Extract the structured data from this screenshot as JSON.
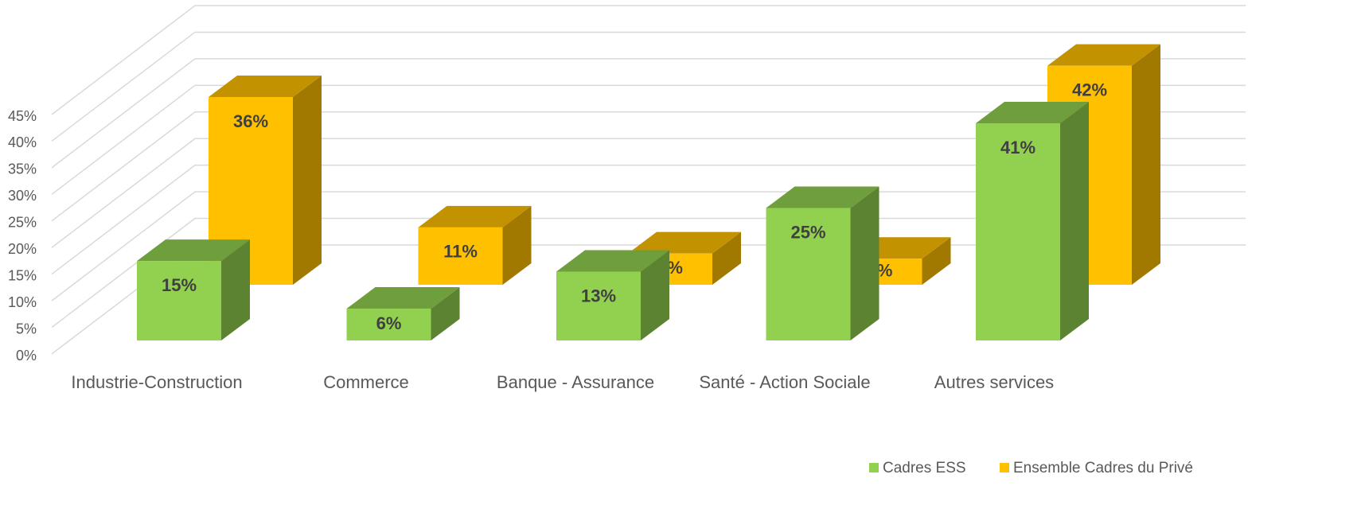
{
  "chart_data": {
    "type": "bar3d",
    "categories": [
      "Industrie-Construction",
      "Commerce",
      "Banque - Assurance",
      "Santé - Action Sociale",
      "Autres services"
    ],
    "series": [
      {
        "name": "Cadres ESS",
        "color": "#92d050",
        "values": [
          15,
          6,
          13,
          25,
          41
        ],
        "value_labels": [
          "15%",
          "6%",
          "13%",
          "25%",
          "41%"
        ]
      },
      {
        "name": "Ensemble Cadres du Privé",
        "color": "#ffc000",
        "values": [
          36,
          11,
          6,
          5,
          42
        ],
        "value_labels": [
          "36%",
          "11%",
          "6%",
          "5%",
          "42%"
        ]
      }
    ],
    "ylim": [
      0,
      45
    ],
    "yticks": [
      {
        "value": 0,
        "label": "0%"
      },
      {
        "value": 5,
        "label": "5%"
      },
      {
        "value": 10,
        "label": "10%"
      },
      {
        "value": 15,
        "label": "15%"
      },
      {
        "value": 20,
        "label": "20%"
      },
      {
        "value": 25,
        "label": "25%"
      },
      {
        "value": 30,
        "label": "30%"
      },
      {
        "value": 35,
        "label": "35%"
      },
      {
        "value": 40,
        "label": "40%"
      },
      {
        "value": 45,
        "label": "45%"
      }
    ],
    "grid": true,
    "legend": "lower right"
  }
}
